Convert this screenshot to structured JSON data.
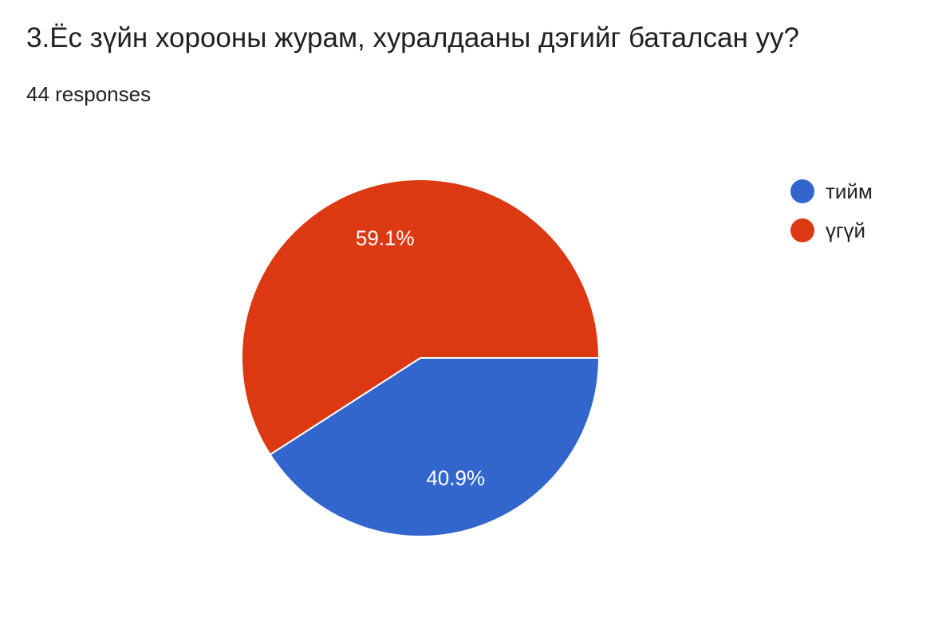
{
  "header": {
    "title": "3.Ёс зүйн хорооны журам, хуралдааны дэгийг баталсан уу?",
    "responses": "44 responses"
  },
  "chart_data": {
    "type": "pie",
    "title": "3.Ёс зүйн хорооны журам, хуралдааны дэгийг баталсан уу?",
    "total_responses": 44,
    "slices": [
      {
        "label": "тийм",
        "value": 40.9,
        "display": "40.9%",
        "color": "#3366cc"
      },
      {
        "label": "үгүй",
        "value": 59.1,
        "display": "59.1%",
        "color": "#dc3912"
      }
    ],
    "legend_position": "right"
  }
}
